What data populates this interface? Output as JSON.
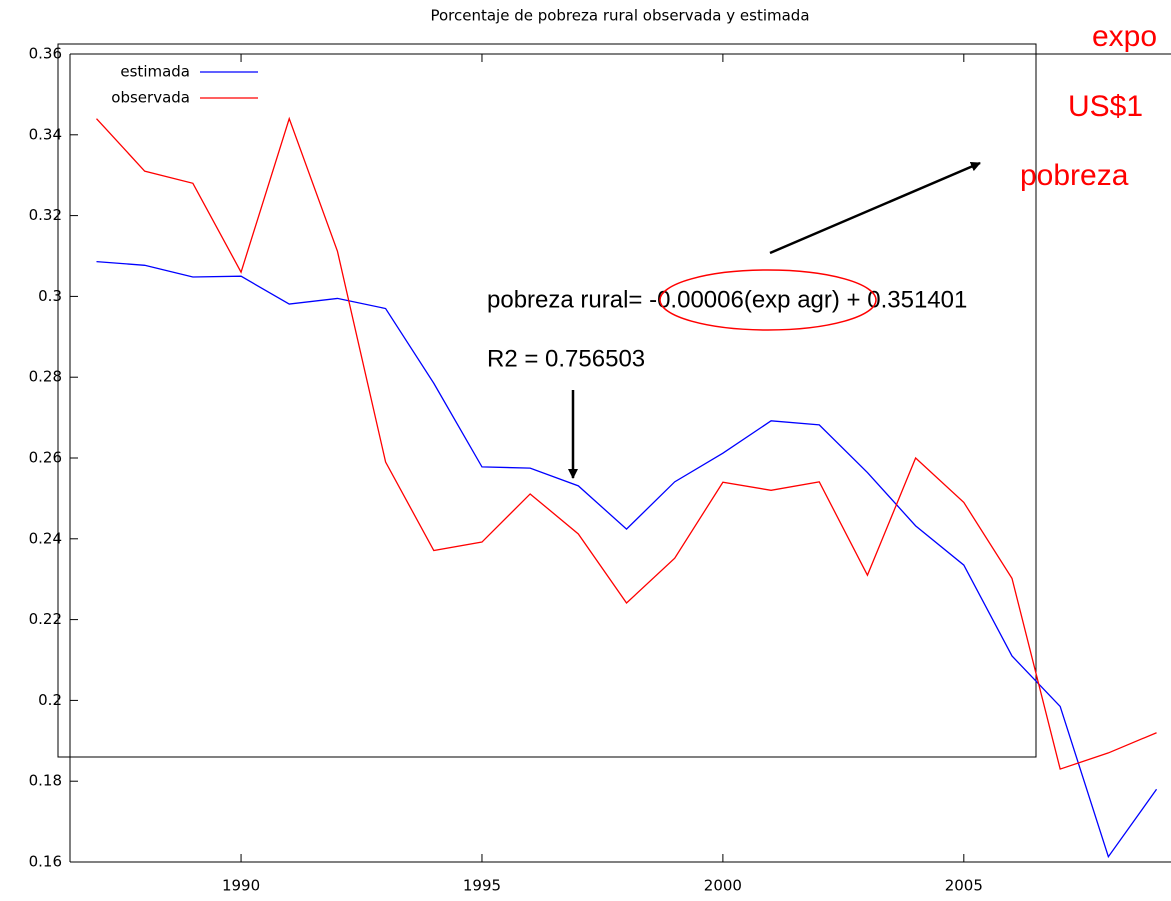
{
  "chart_data": {
    "type": "line",
    "title": "Porcentaje de pobreza rural observada y estimada",
    "x": [
      1987,
      1988,
      1989,
      1990,
      1991,
      1992,
      1993,
      1994,
      1995,
      1996,
      1997,
      1998,
      1999,
      2000,
      2001,
      2002,
      2003,
      2004,
      2005,
      2006,
      2007,
      2008,
      2009
    ],
    "series": [
      {
        "name": "estimada",
        "color": "#0000ff",
        "values": [
          0.3086,
          0.3077,
          0.3048,
          0.305,
          0.2981,
          0.2995,
          0.297,
          0.2785,
          0.2578,
          0.2575,
          0.2531,
          0.2424,
          0.2541,
          0.2612,
          0.2692,
          0.2682,
          0.2564,
          0.2432,
          0.2335,
          0.211,
          0.1985,
          0.1613,
          0.178
        ]
      },
      {
        "name": "observada",
        "color": "#ff0000",
        "values": [
          0.344,
          0.331,
          0.328,
          0.306,
          0.344,
          0.3112,
          0.259,
          0.2371,
          0.2392,
          0.2511,
          0.2412,
          0.2241,
          0.2352,
          0.254,
          0.252,
          0.2541,
          0.231,
          0.26,
          0.249,
          0.2302,
          0.183,
          0.187,
          0.192
        ]
      }
    ],
    "xlim": [
      1986.45,
      2009.3
    ],
    "ylim": [
      0.16,
      0.36
    ],
    "xticks": [
      1990,
      1995,
      2000,
      2005
    ],
    "yticks": [
      0.16,
      0.18,
      0.2,
      0.22,
      0.24,
      0.26,
      0.28,
      0.3,
      0.32,
      0.34,
      0.36
    ],
    "legend": "top-left",
    "annotations": [
      "pobreza rural= -0.00006(exp agr) + 0.351401",
      "R2 = 0.756503",
      "expo",
      "US$1",
      "pobreza"
    ]
  }
}
